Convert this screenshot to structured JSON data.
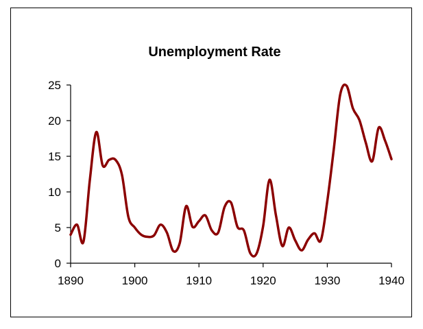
{
  "chart_data": {
    "type": "line",
    "title": "Unemployment Rate",
    "xlabel": "",
    "ylabel": "",
    "xlim": [
      1890,
      1940
    ],
    "ylim": [
      0,
      25
    ],
    "x_ticks": [
      1890,
      1900,
      1910,
      1920,
      1930,
      1940
    ],
    "y_ticks": [
      0,
      5,
      10,
      15,
      20,
      25
    ],
    "grid": false,
    "legend": "none",
    "series": [
      {
        "color": "#8b0000",
        "x": [
          1890,
          1891,
          1892,
          1893,
          1894,
          1895,
          1896,
          1897,
          1898,
          1899,
          1900,
          1901,
          1902,
          1903,
          1904,
          1905,
          1906,
          1907,
          1908,
          1909,
          1910,
          1911,
          1912,
          1913,
          1914,
          1915,
          1916,
          1917,
          1918,
          1919,
          1920,
          1921,
          1922,
          1923,
          1924,
          1925,
          1926,
          1927,
          1928,
          1929,
          1930,
          1931,
          1932,
          1933,
          1934,
          1935,
          1936,
          1937,
          1938,
          1939,
          1940
        ],
        "values": [
          4.0,
          5.4,
          3.0,
          11.7,
          18.4,
          13.7,
          14.5,
          14.5,
          12.4,
          6.5,
          5.0,
          4.0,
          3.7,
          3.9,
          5.4,
          4.3,
          1.7,
          2.8,
          8.0,
          5.1,
          5.9,
          6.7,
          4.6,
          4.3,
          7.9,
          8.5,
          5.1,
          4.6,
          1.4,
          1.4,
          5.2,
          11.7,
          6.7,
          2.4,
          5.0,
          3.2,
          1.8,
          3.3,
          4.2,
          3.2,
          8.7,
          15.9,
          23.6,
          24.9,
          21.7,
          20.1,
          16.9,
          14.3,
          19.0,
          17.2,
          14.6
        ]
      }
    ]
  }
}
